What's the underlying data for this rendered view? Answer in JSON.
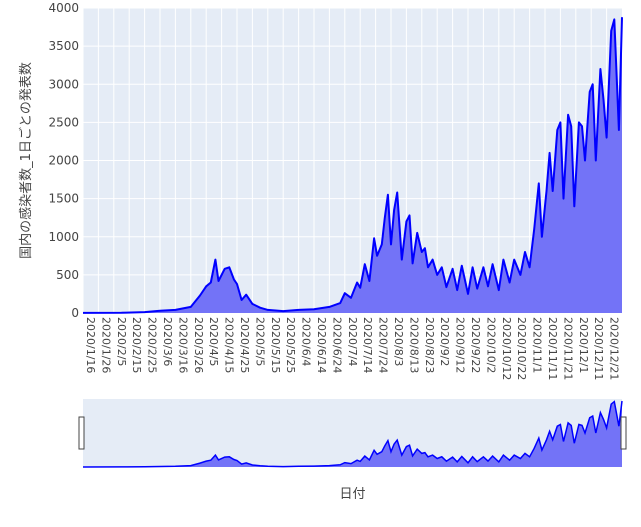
{
  "colors": {
    "plot_bg": "#e5ecf6",
    "grid": "#ffffff",
    "line": "#0000ff",
    "fill": "#7373f7",
    "text": "#444444",
    "handle": "#ffffff"
  },
  "chart_data": {
    "type": "area",
    "xlabel": "日付",
    "ylabel": "国内の感染者数_1日ごとの発表数",
    "ylim": [
      0,
      4000
    ],
    "y_ticks": [
      0,
      500,
      1000,
      1500,
      2000,
      2500,
      3000,
      3500,
      4000
    ],
    "x_tick_labels": [
      "2020/1/16",
      "2020/1/26",
      "2020/2/5",
      "2020/2/15",
      "2020/2/25",
      "2020/3/6",
      "2020/3/16",
      "2020/3/26",
      "2020/4/5",
      "2020/4/15",
      "2020/4/25",
      "2020/5/5",
      "2020/5/15",
      "2020/5/25",
      "2020/6/4",
      "2020/6/14",
      "2020/6/24",
      "2020/7/4",
      "2020/7/14",
      "2020/7/24",
      "2020/8/3",
      "2020/8/13",
      "2020/8/23",
      "2020/9/2",
      "2020/9/12",
      "2020/9/22",
      "2020/10/2",
      "2020/10/12",
      "2020/10/22",
      "2020/11/1",
      "2020/11/11",
      "2020/11/21",
      "2020/12/1",
      "2020/12/11",
      "2020/12/21"
    ],
    "x_start": "2020/1/16",
    "x_end": "2020/12/31",
    "grid": true,
    "range_slider": true,
    "series": [
      {
        "points": [
          [
            "2020/1/16",
            1
          ],
          [
            "2020/2/10",
            3
          ],
          [
            "2020/2/25",
            12
          ],
          [
            "2020/3/6",
            30
          ],
          [
            "2020/3/16",
            40
          ],
          [
            "2020/3/26",
            80
          ],
          [
            "2020/4/1",
            230
          ],
          [
            "2020/4/5",
            350
          ],
          [
            "2020/4/8",
            400
          ],
          [
            "2020/4/11",
            700
          ],
          [
            "2020/4/13",
            420
          ],
          [
            "2020/4/17",
            580
          ],
          [
            "2020/4/20",
            600
          ],
          [
            "2020/4/23",
            440
          ],
          [
            "2020/4/25",
            380
          ],
          [
            "2020/4/28",
            170
          ],
          [
            "2020/5/1",
            240
          ],
          [
            "2020/5/5",
            120
          ],
          [
            "2020/5/10",
            70
          ],
          [
            "2020/5/15",
            40
          ],
          [
            "2020/5/25",
            25
          ],
          [
            "2020/6/4",
            40
          ],
          [
            "2020/6/14",
            50
          ],
          [
            "2020/6/24",
            80
          ],
          [
            "2020/7/1",
            130
          ],
          [
            "2020/7/4",
            260
          ],
          [
            "2020/7/8",
            200
          ],
          [
            "2020/7/12",
            400
          ],
          [
            "2020/7/14",
            330
          ],
          [
            "2020/7/17",
            640
          ],
          [
            "2020/7/20",
            420
          ],
          [
            "2020/7/23",
            980
          ],
          [
            "2020/7/25",
            750
          ],
          [
            "2020/7/28",
            900
          ],
          [
            "2020/7/30",
            1250
          ],
          [
            "2020/8/1",
            1550
          ],
          [
            "2020/8/3",
            900
          ],
          [
            "2020/8/5",
            1350
          ],
          [
            "2020/8/7",
            1580
          ],
          [
            "2020/8/10",
            700
          ],
          [
            "2020/8/13",
            1200
          ],
          [
            "2020/8/15",
            1280
          ],
          [
            "2020/8/17",
            650
          ],
          [
            "2020/8/20",
            1050
          ],
          [
            "2020/8/23",
            800
          ],
          [
            "2020/8/25",
            850
          ],
          [
            "2020/8/27",
            600
          ],
          [
            "2020/8/30",
            700
          ],
          [
            "2020/9/2",
            500
          ],
          [
            "2020/9/5",
            600
          ],
          [
            "2020/9/8",
            340
          ],
          [
            "2020/9/12",
            580
          ],
          [
            "2020/9/15",
            300
          ],
          [
            "2020/9/18",
            620
          ],
          [
            "2020/9/22",
            250
          ],
          [
            "2020/9/25",
            600
          ],
          [
            "2020/9/28",
            320
          ],
          [
            "2020/10/2",
            600
          ],
          [
            "2020/10/5",
            350
          ],
          [
            "2020/10/8",
            640
          ],
          [
            "2020/10/12",
            300
          ],
          [
            "2020/10/15",
            700
          ],
          [
            "2020/10/19",
            400
          ],
          [
            "2020/10/22",
            700
          ],
          [
            "2020/10/26",
            500
          ],
          [
            "2020/10/29",
            800
          ],
          [
            "2020/11/1",
            600
          ],
          [
            "2020/11/4",
            1100
          ],
          [
            "2020/11/7",
            1700
          ],
          [
            "2020/11/9",
            1000
          ],
          [
            "2020/11/12",
            1600
          ],
          [
            "2020/11/14",
            2100
          ],
          [
            "2020/11/16",
            1600
          ],
          [
            "2020/11/19",
            2400
          ],
          [
            "2020/11/21",
            2500
          ],
          [
            "2020/11/23",
            1500
          ],
          [
            "2020/11/26",
            2600
          ],
          [
            "2020/11/28",
            2450
          ],
          [
            "2020/11/30",
            1400
          ],
          [
            "2020/12/3",
            2500
          ],
          [
            "2020/12/5",
            2450
          ],
          [
            "2020/12/7",
            2000
          ],
          [
            "2020/12/10",
            2900
          ],
          [
            "2020/12/12",
            3000
          ],
          [
            "2020/12/14",
            2000
          ],
          [
            "2020/12/17",
            3200
          ],
          [
            "2020/12/19",
            2800
          ],
          [
            "2020/12/21",
            2300
          ],
          [
            "2020/12/24",
            3700
          ],
          [
            "2020/12/26",
            3850
          ],
          [
            "2020/12/29",
            2400
          ],
          [
            "2020/12/31",
            3880
          ]
        ]
      }
    ]
  }
}
